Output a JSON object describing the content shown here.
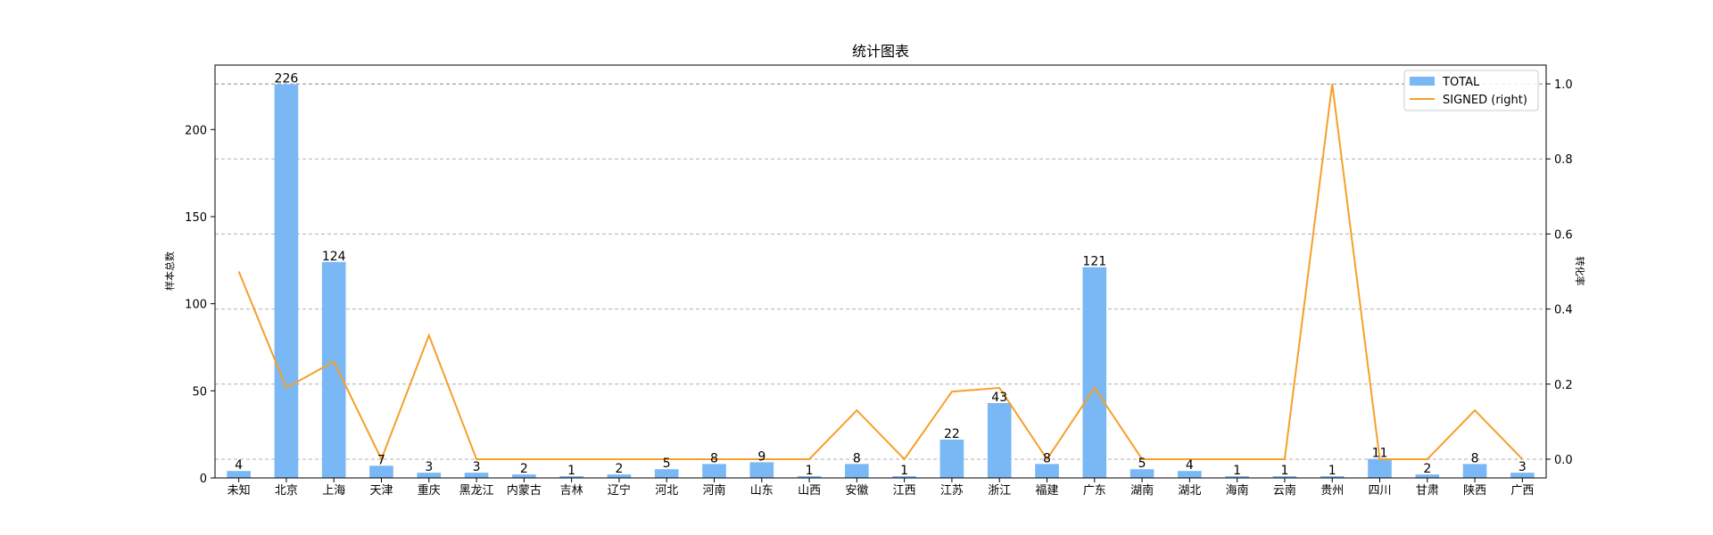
{
  "chart_data": {
    "type": "bar",
    "title": "统计图表",
    "xlabel": "",
    "ylabel": "样本总数",
    "y2label": "转化率",
    "ylim": [
      0,
      237
    ],
    "y2lim": [
      -0.05,
      1.05
    ],
    "grid": "horizontal-dashed",
    "legend_position": "top-right",
    "categories": [
      "未知",
      "北京",
      "上海",
      "天津",
      "重庆",
      "黑龙江",
      "内蒙古",
      "吉林",
      "辽宁",
      "河北",
      "河南",
      "山东",
      "山西",
      "安徽",
      "江西",
      "江苏",
      "浙江",
      "福建",
      "广东",
      "湖南",
      "湖北",
      "海南",
      "云南",
      "贵州",
      "四川",
      "甘肃",
      "陕西",
      "广西"
    ],
    "series": [
      {
        "name": "TOTAL",
        "type": "bar",
        "axis": "left",
        "color": "#7ab8f5",
        "values": [
          4,
          226,
          124,
          7,
          3,
          3,
          2,
          1,
          2,
          5,
          8,
          9,
          1,
          8,
          1,
          22,
          43,
          8,
          121,
          5,
          4,
          1,
          1,
          1,
          11,
          2,
          8,
          3
        ]
      },
      {
        "name": "SIGNED (right)",
        "type": "line",
        "axis": "right",
        "color": "#f5a02a",
        "values": [
          0.5,
          0.19,
          0.26,
          0,
          0.33,
          0,
          0,
          0,
          0,
          0,
          0,
          0,
          0,
          0.13,
          0,
          0.18,
          0.19,
          0,
          0.19,
          0,
          0,
          0,
          0,
          1.0,
          0,
          0,
          0.13,
          0
        ]
      }
    ],
    "yticks": [
      0,
      50,
      100,
      150,
      200
    ],
    "y2ticks": [
      0.0,
      0.2,
      0.4,
      0.6,
      0.8,
      1.0
    ]
  }
}
